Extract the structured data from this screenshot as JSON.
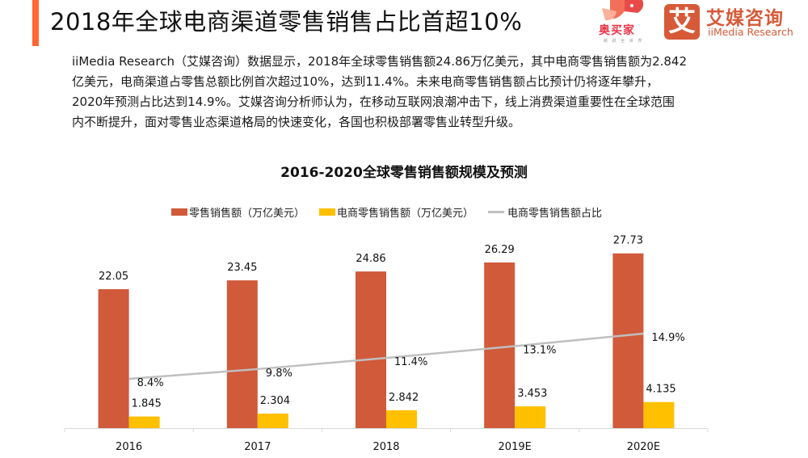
{
  "header": {
    "title": "2018年全球电商渠道零售销售占比首超10%",
    "accent_color": "#ff6633"
  },
  "logos": {
    "aomaijia": {
      "name": "奥买家",
      "tagline": "跳 跃 全 世 界"
    },
    "imedia": {
      "mark": "艾",
      "name_cn": "艾媒咨询",
      "name_en": "iiMedia Research",
      "color": "#d65a38"
    }
  },
  "body": {
    "lines": [
      "iiMedia Research（艾媒咨询）数据显示，2018年全球零售销售额24.86万亿美元，其中电商零售销售额为2.842",
      "亿美元，电商渠道占零售总额比例首次超过10%，达到11.4%。未来电商零售销售额占比预计仍将逐年攀升，",
      "2020年预测占比达到14.9%。艾媒咨询分析师认为，在移动互联网浪潮冲击下，线上消费渠道重要性在全球范围",
      "内不断提升，面对零售业态渠道格局的快速变化，各国也积极部署零售业转型升级。"
    ]
  },
  "chart_data": {
    "type": "bar",
    "title": "2016-2020全球零售销售额规模及预测",
    "categories": [
      "2016",
      "2017",
      "2018",
      "2019E",
      "2020E"
    ],
    "series": [
      {
        "name": "零售销售额（万亿美元）",
        "type": "bar",
        "color": "#d05a3a",
        "values": [
          22.05,
          23.45,
          24.86,
          26.29,
          27.73
        ],
        "labels": [
          "22.05",
          "23.45",
          "24.86",
          "26.29",
          "27.73"
        ]
      },
      {
        "name": "电商零售销售额（万亿美元）",
        "type": "bar",
        "color": "#ffc000",
        "values": [
          1.845,
          2.304,
          2.842,
          3.453,
          4.135
        ],
        "labels": [
          "1.845",
          "2.304",
          "2.842",
          "3.453",
          "4.135"
        ]
      },
      {
        "name": "电商零售销售额占比",
        "type": "line",
        "color": "#bfbfbf",
        "values": [
          8.4,
          9.8,
          11.4,
          13.1,
          14.9
        ],
        "labels": [
          "8.4%",
          "9.8%",
          "11.4%",
          "13.1%",
          "14.9%"
        ]
      }
    ],
    "legend": "top",
    "grid": false,
    "xlabel": "",
    "ylabel": ""
  }
}
